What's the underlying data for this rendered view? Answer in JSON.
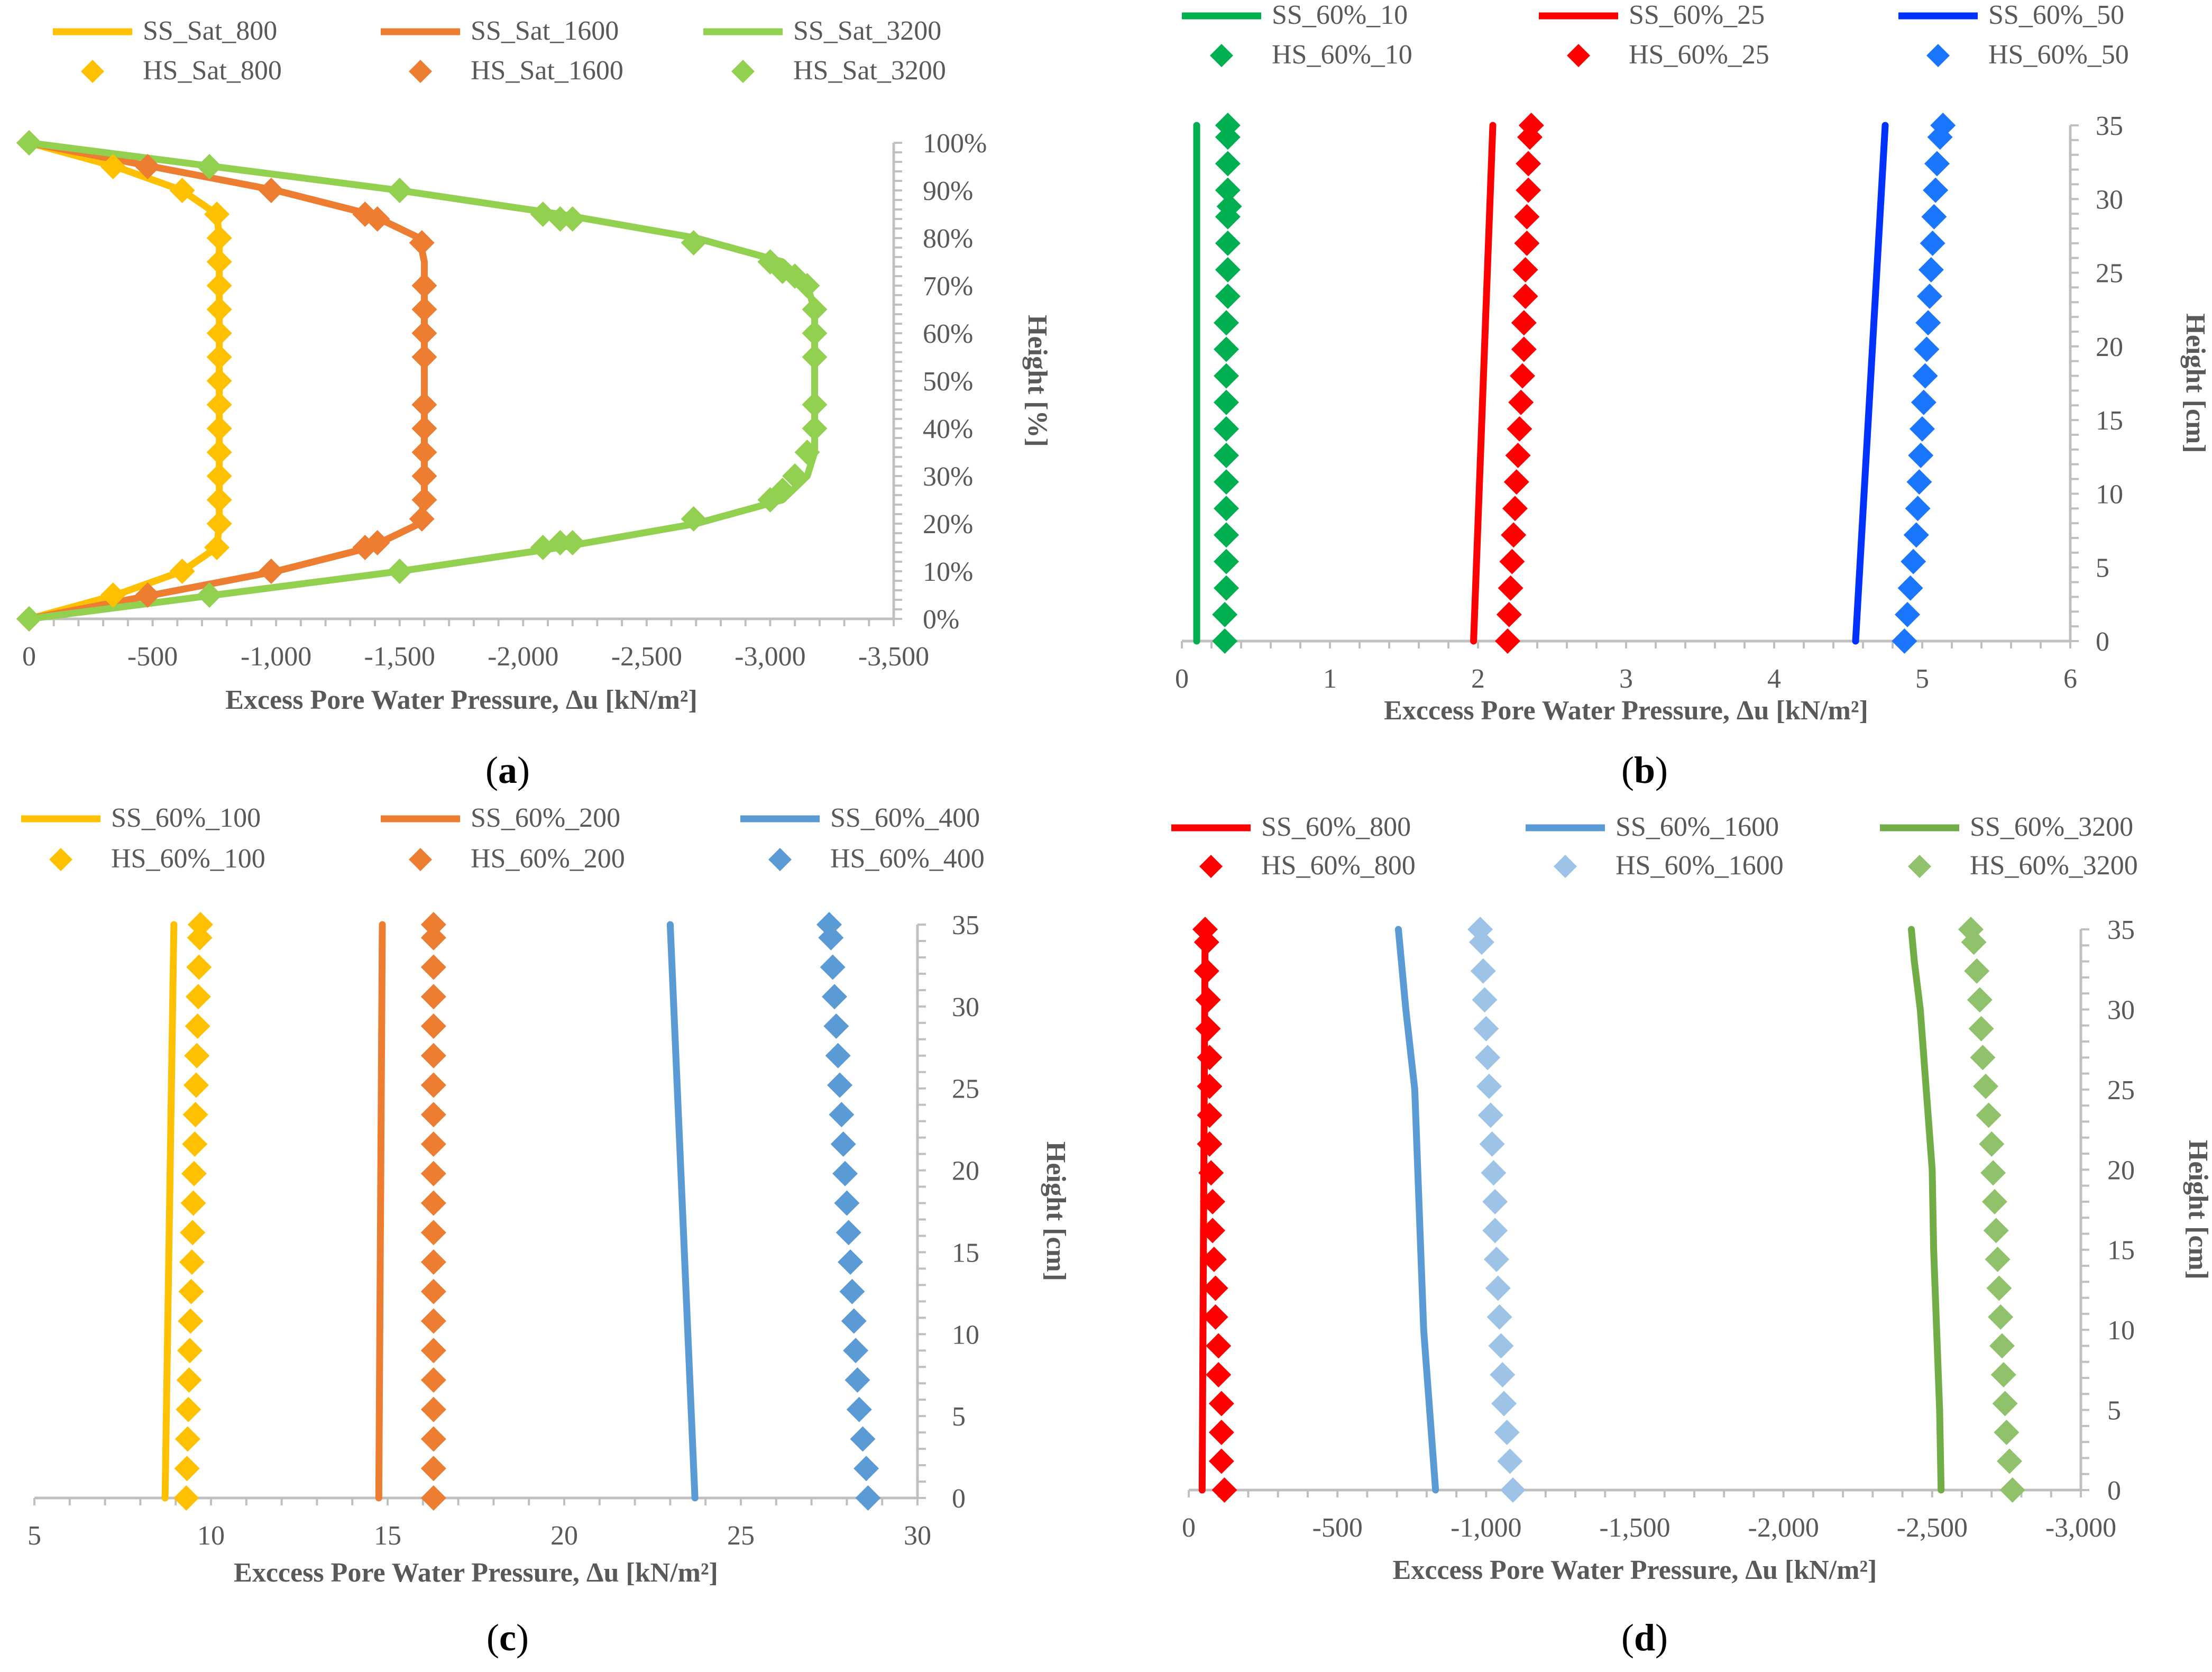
{
  "chart_data": [
    {
      "panel": "a",
      "type": "scatter",
      "caption_letter": "a",
      "xlabel": "Excess Pore Water Pressure, Δu [kN/m²]",
      "ylabel": "Height [%]",
      "x_reversed": true,
      "xlim": [
        0,
        -3500
      ],
      "xticks": [
        0,
        -500,
        -1000,
        -1500,
        -2000,
        -2500,
        -3000,
        -3500
      ],
      "xtick_labels": [
        "0",
        "-500",
        "-1,000",
        "-1,500",
        "-2,000",
        "-2,500",
        "-3,000",
        "-3,500"
      ],
      "ylim": [
        0,
        100
      ],
      "yticks": [
        0,
        10,
        20,
        30,
        40,
        50,
        60,
        70,
        80,
        90,
        100
      ],
      "ytick_labels": [
        "0%",
        "10%",
        "20%",
        "30%",
        "40%",
        "50%",
        "60%",
        "70%",
        "80%",
        "90%",
        "100%"
      ],
      "series": [
        {
          "name": "SS_Sat_800",
          "kind": "line",
          "color": "#ffc000",
          "x": [
            0,
            -350,
            -620,
            -760,
            -770,
            -770,
            -770,
            -760,
            -620,
            -350,
            0
          ],
          "y": [
            0,
            5,
            10,
            15,
            20,
            50,
            80,
            85,
            90,
            95,
            100
          ]
        },
        {
          "name": "SS_Sat_1600",
          "kind": "line",
          "color": "#ed7d31",
          "x": [
            0,
            -500,
            -1000,
            -1380,
            -1580,
            -1600,
            -1600,
            -1580,
            -1380,
            -1000,
            -500,
            0
          ],
          "y": [
            0,
            5,
            10,
            15,
            20,
            25,
            75,
            80,
            85,
            90,
            95,
            100
          ]
        },
        {
          "name": "SS_Sat_3200",
          "kind": "line",
          "color": "#92d050",
          "x": [
            0,
            -750,
            -1500,
            -2150,
            -2700,
            -3050,
            -3150,
            -3180,
            -3180,
            -3150,
            -3050,
            -2700,
            -2150,
            -1500,
            -750,
            0
          ],
          "y": [
            0,
            5,
            10,
            15,
            20,
            25,
            30,
            35,
            65,
            70,
            75,
            80,
            85,
            90,
            95,
            100
          ]
        },
        {
          "name": "HS_Sat_800",
          "kind": "marker",
          "color": "#ffc000",
          "x": [
            0,
            -340,
            -620,
            -760,
            -770,
            -770,
            -770,
            -770,
            -770,
            -770,
            -770,
            -770,
            -770,
            -770,
            -770,
            -770,
            -770,
            -760,
            -620,
            -340,
            0
          ],
          "y": [
            0,
            5,
            10,
            15,
            20,
            25,
            30,
            35,
            40,
            45,
            50,
            55,
            60,
            65,
            70,
            75,
            80,
            85,
            90,
            95,
            100
          ]
        },
        {
          "name": "HS_Sat_1600",
          "kind": "marker",
          "color": "#ed7d31",
          "x": [
            0,
            -480,
            -980,
            -1360,
            -1410,
            -1590,
            -1600,
            -1600,
            -1600,
            -1600,
            -1600,
            -1600,
            -1600,
            -1600,
            -1600,
            -1590,
            -1410,
            -1360,
            -980,
            -480,
            0
          ],
          "y": [
            0,
            5,
            10,
            15,
            16,
            21,
            25,
            30,
            35,
            40,
            45,
            55,
            60,
            65,
            70,
            79,
            84,
            85,
            90,
            95,
            100
          ]
        },
        {
          "name": "HS_Sat_3200",
          "kind": "marker",
          "color": "#92d050",
          "x": [
            0,
            -730,
            -1500,
            -2080,
            -2150,
            -2200,
            -2690,
            -3000,
            -3050,
            -3100,
            -3150,
            -3180,
            -3180,
            -3180,
            -3180,
            -3180,
            -3150,
            -3100,
            -3050,
            -3000,
            -2690,
            -2200,
            -2150,
            -2080,
            -1500,
            -730,
            0
          ],
          "y": [
            0,
            5,
            10,
            15,
            16,
            16,
            21,
            25,
            27,
            30,
            35,
            40,
            45,
            55,
            60,
            65,
            70,
            72,
            73,
            75,
            79,
            84,
            84,
            85,
            90,
            95,
            100
          ]
        }
      ]
    },
    {
      "panel": "b",
      "type": "scatter",
      "caption_letter": "b",
      "xlabel": "Exccess Pore Water Pressure, Δu [kN/m²]",
      "ylabel": "Height [cm]",
      "x_reversed": false,
      "xlim": [
        0,
        6
      ],
      "xticks": [
        0,
        1,
        2,
        3,
        4,
        5,
        6
      ],
      "xtick_labels": [
        "0",
        "1",
        "2",
        "3",
        "4",
        "5",
        "6"
      ],
      "ylim": [
        0,
        35
      ],
      "yticks": [
        0,
        5,
        10,
        15,
        20,
        25,
        30,
        35
      ],
      "ytick_labels": [
        "0",
        "5",
        "10",
        "15",
        "20",
        "25",
        "30",
        "35"
      ],
      "series": [
        {
          "name": "SS_60%_10",
          "kind": "line",
          "color": "#00b050",
          "x": [
            0.1,
            0.1
          ],
          "y": [
            0,
            35
          ]
        },
        {
          "name": "SS_60%_25",
          "kind": "line",
          "color": "#ff0000",
          "x": [
            1.97,
            2.1
          ],
          "y": [
            0,
            35
          ]
        },
        {
          "name": "SS_60%_50",
          "kind": "line",
          "color": "#0033ff",
          "x": [
            4.55,
            4.75
          ],
          "y": [
            0,
            35
          ]
        },
        {
          "name": "HS_60%_10",
          "kind": "marker",
          "color": "#00b050",
          "x": [
            0.29,
            0.29,
            0.3,
            0.3,
            0.3,
            0.3,
            0.3,
            0.3,
            0.3,
            0.3,
            0.3,
            0.3,
            0.3,
            0.31,
            0.31,
            0.31,
            0.31,
            0.31,
            0.31,
            0.31,
            0.31,
            0.32
          ],
          "y": [
            0,
            1.8,
            3.6,
            5.4,
            7.2,
            9,
            10.8,
            12.6,
            14.4,
            16.2,
            18,
            19.8,
            21.6,
            23.4,
            25.2,
            27,
            28.8,
            30.6,
            32.4,
            34.2,
            35,
            29.5
          ]
        },
        {
          "name": "HS_60%_25",
          "kind": "marker",
          "color": "#ff0000",
          "x": [
            2.2,
            2.21,
            2.22,
            2.23,
            2.24,
            2.25,
            2.26,
            2.27,
            2.28,
            2.29,
            2.3,
            2.31,
            2.31,
            2.32,
            2.32,
            2.33,
            2.33,
            2.34,
            2.34,
            2.35,
            2.36
          ],
          "y": [
            0,
            1.8,
            3.6,
            5.4,
            7.2,
            9,
            10.8,
            12.6,
            14.4,
            16.2,
            18,
            19.8,
            21.6,
            23.4,
            25.2,
            27,
            28.8,
            30.6,
            32.4,
            34.2,
            35
          ]
        },
        {
          "name": "HS_60%_50",
          "kind": "marker",
          "color": "#1a75ff",
          "x": [
            4.88,
            4.9,
            4.92,
            4.94,
            4.96,
            4.97,
            4.98,
            4.99,
            5.0,
            5.01,
            5.02,
            5.03,
            5.04,
            5.05,
            5.06,
            5.07,
            5.08,
            5.09,
            5.1,
            5.12,
            5.14
          ],
          "y": [
            0,
            1.8,
            3.6,
            5.4,
            7.2,
            9,
            10.8,
            12.6,
            14.4,
            16.2,
            18,
            19.8,
            21.6,
            23.4,
            25.2,
            27,
            28.8,
            30.6,
            32.4,
            34.2,
            35
          ]
        }
      ]
    },
    {
      "panel": "c",
      "type": "scatter",
      "caption_letter": "c",
      "xlabel": "Exccess Pore Water Pressure, Δu [kN/m²]",
      "ylabel": "Height [cm]",
      "x_reversed": false,
      "xlim": [
        5,
        30
      ],
      "xticks": [
        5,
        10,
        15,
        20,
        25,
        30
      ],
      "xtick_labels": [
        "5",
        "10",
        "15",
        "20",
        "25",
        "30"
      ],
      "ylim": [
        0,
        35
      ],
      "yticks": [
        0,
        5,
        10,
        15,
        20,
        25,
        30,
        35
      ],
      "ytick_labels": [
        "0",
        "5",
        "10",
        "15",
        "20",
        "25",
        "30",
        "35"
      ],
      "series": [
        {
          "name": "SS_60%_100",
          "kind": "line",
          "color": "#ffc000",
          "x": [
            8.7,
            8.95
          ],
          "y": [
            0,
            35
          ]
        },
        {
          "name": "SS_60%_200",
          "kind": "line",
          "color": "#ed7d31",
          "x": [
            14.75,
            14.85
          ],
          "y": [
            0,
            35
          ]
        },
        {
          "name": "SS_60%_400",
          "kind": "line",
          "color": "#5b9bd5",
          "x": [
            23.7,
            23.0
          ],
          "y": [
            0,
            35
          ]
        },
        {
          "name": "HS_60%_100",
          "kind": "marker",
          "color": "#ffc000",
          "x": [
            9.3,
            9.32,
            9.34,
            9.36,
            9.38,
            9.4,
            9.42,
            9.44,
            9.46,
            9.48,
            9.5,
            9.52,
            9.54,
            9.56,
            9.58,
            9.6,
            9.62,
            9.64,
            9.66,
            9.68,
            9.7
          ],
          "y": [
            0,
            1.8,
            3.6,
            5.4,
            7.2,
            9,
            10.8,
            12.6,
            14.4,
            16.2,
            18,
            19.8,
            21.6,
            23.4,
            25.2,
            27,
            28.8,
            30.6,
            32.4,
            34.2,
            35
          ]
        },
        {
          "name": "HS_60%_200",
          "kind": "marker",
          "color": "#ed7d31",
          "x": [
            16.3,
            16.3,
            16.3,
            16.3,
            16.3,
            16.3,
            16.3,
            16.3,
            16.3,
            16.3,
            16.3,
            16.3,
            16.3,
            16.3,
            16.3,
            16.3,
            16.3,
            16.3,
            16.3,
            16.3,
            16.3
          ],
          "y": [
            0,
            1.8,
            3.6,
            5.4,
            7.2,
            9,
            10.8,
            12.6,
            14.4,
            16.2,
            18,
            19.8,
            21.6,
            23.4,
            25.2,
            27,
            28.8,
            30.6,
            32.4,
            34.2,
            35
          ]
        },
        {
          "name": "HS_60%_400",
          "kind": "marker",
          "color": "#5b9bd5",
          "x": [
            28.6,
            28.55,
            28.45,
            28.35,
            28.3,
            28.25,
            28.2,
            28.15,
            28.1,
            28.05,
            28.0,
            27.95,
            27.9,
            27.85,
            27.8,
            27.75,
            27.7,
            27.65,
            27.6,
            27.55,
            27.5
          ],
          "y": [
            0,
            1.8,
            3.6,
            5.4,
            7.2,
            9,
            10.8,
            12.6,
            14.4,
            16.2,
            18,
            19.8,
            21.6,
            23.4,
            25.2,
            27,
            28.8,
            30.6,
            32.4,
            34.2,
            35
          ]
        }
      ]
    },
    {
      "panel": "d",
      "type": "scatter",
      "caption_letter": "d",
      "xlabel": "Exccess Pore Water Pressure, Δu [kN/m²]",
      "ylabel": "Height [cm]",
      "x_reversed": true,
      "xlim": [
        0,
        -3000
      ],
      "xticks": [
        0,
        -500,
        -1000,
        -1500,
        -2000,
        -2500,
        -3000
      ],
      "xtick_labels": [
        "0",
        "-500",
        "-1,000",
        "-1,500",
        "-2,000",
        "-2,500",
        "-3,000"
      ],
      "ylim": [
        0,
        35
      ],
      "yticks": [
        0,
        5,
        10,
        15,
        20,
        25,
        30,
        35
      ],
      "ytick_labels": [
        "0",
        "5",
        "10",
        "15",
        "20",
        "25",
        "30",
        "35"
      ],
      "series": [
        {
          "name": "SS_60%_800",
          "kind": "line",
          "color": "#ff0000",
          "x": [
            -45,
            -55
          ],
          "y": [
            0,
            35
          ]
        },
        {
          "name": "SS_60%_1600",
          "kind": "line",
          "color": "#5b9bd5",
          "x": [
            -830,
            -810,
            -790,
            -780,
            -770,
            -760,
            -730,
            -715,
            -705
          ],
          "y": [
            0,
            5,
            10,
            15,
            20,
            25,
            30,
            33,
            35
          ]
        },
        {
          "name": "SS_60%_3200",
          "kind": "line",
          "color": "#70ad47",
          "x": [
            -2530,
            -2525,
            -2515,
            -2505,
            -2500,
            -2480,
            -2460,
            -2440,
            -2430
          ],
          "y": [
            0,
            5,
            10,
            15,
            20,
            25,
            30,
            33,
            35
          ]
        },
        {
          "name": "HS_60%_800",
          "kind": "marker",
          "color": "#ff0000",
          "x": [
            -120,
            -110,
            -110,
            -110,
            -100,
            -100,
            -90,
            -90,
            -85,
            -80,
            -80,
            -75,
            -70,
            -70,
            -70,
            -70,
            -65,
            -65,
            -60,
            -60,
            -55
          ],
          "y": [
            0,
            1.8,
            3.6,
            5.4,
            7.2,
            9,
            10.8,
            12.6,
            14.4,
            16.2,
            18,
            19.8,
            21.6,
            23.4,
            25.2,
            27,
            28.8,
            30.6,
            32.4,
            34.2,
            35
          ]
        },
        {
          "name": "HS_60%_1600",
          "kind": "marker",
          "color": "#9dc3e6",
          "x": [
            -1090,
            -1080,
            -1070,
            -1060,
            -1055,
            -1050,
            -1045,
            -1040,
            -1035,
            -1030,
            -1030,
            -1025,
            -1020,
            -1015,
            -1010,
            -1005,
            -1000,
            -995,
            -990,
            -985,
            -980
          ],
          "y": [
            0,
            1.8,
            3.6,
            5.4,
            7.2,
            9,
            10.8,
            12.6,
            14.4,
            16.2,
            18,
            19.8,
            21.6,
            23.4,
            25.2,
            27,
            28.8,
            30.6,
            32.4,
            34.2,
            35
          ]
        },
        {
          "name": "HS_60%_3200",
          "kind": "marker",
          "color": "#8fc26a",
          "x": [
            -2770,
            -2760,
            -2750,
            -2745,
            -2740,
            -2735,
            -2730,
            -2725,
            -2720,
            -2715,
            -2710,
            -2705,
            -2700,
            -2690,
            -2680,
            -2670,
            -2665,
            -2660,
            -2650,
            -2640,
            -2630
          ],
          "y": [
            0,
            1.8,
            3.6,
            5.4,
            7.2,
            9,
            10.8,
            12.6,
            14.4,
            16.2,
            18,
            19.8,
            21.6,
            23.4,
            25.2,
            27,
            28.8,
            30.6,
            32.4,
            34.2,
            35
          ]
        }
      ]
    }
  ]
}
